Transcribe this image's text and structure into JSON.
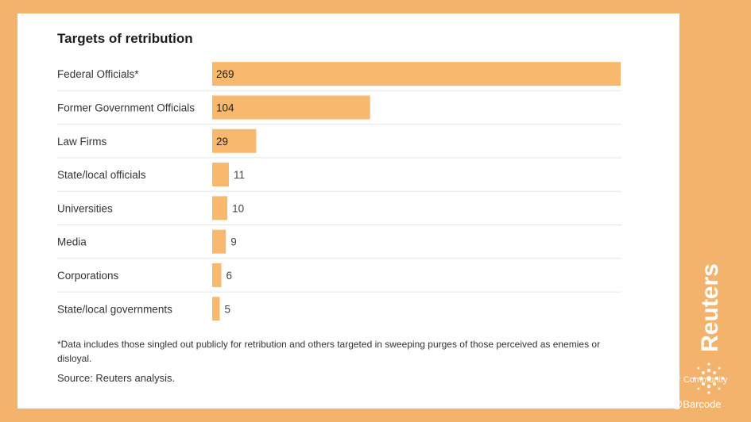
{
  "chart_data": {
    "type": "bar",
    "orientation": "horizontal",
    "title": "Targets of retribution",
    "categories": [
      "Federal Officials*",
      "Former Government Officials",
      "Law Firms",
      "State/local officials",
      "Universities",
      "Media",
      "Corporations",
      "State/local governments"
    ],
    "values": [
      269,
      104,
      29,
      11,
      10,
      9,
      6,
      5
    ],
    "bar_color": "#f8b96e",
    "grid": "row separators",
    "legend": "none"
  },
  "footnote": "*Data includes those singled out publicly for retribution and others targeted in sweeping purges of those perceived as enemies or disloyal.",
  "source": "Source: Reuters analysis.",
  "brand": "Reuters",
  "watermark": {
    "text": "Tiger Community",
    "handle": "@Barcode"
  },
  "colors": {
    "background": "#f4b36c",
    "card": "#ffffff"
  }
}
